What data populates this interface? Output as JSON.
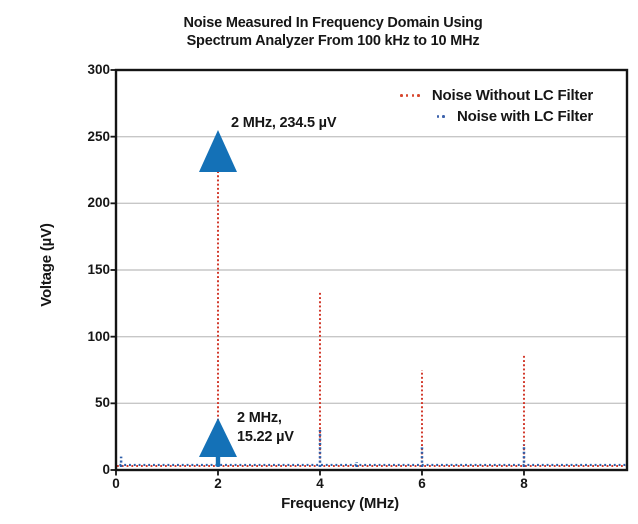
{
  "title": {
    "line1": "Noise Measured In Frequency Domain Using",
    "line2": "Spectrum Analyzer From 100 kHz to 10 MHz"
  },
  "axes": {
    "x_label": "Frequency (MHz)",
    "y_label": "Voltage (µV)",
    "x_ticks": [
      0,
      2,
      4,
      6,
      8
    ],
    "y_ticks": [
      0,
      50,
      100,
      150,
      200,
      250,
      300
    ]
  },
  "legend": [
    {
      "label": "Noise Without LC Filter",
      "color": "#d7472f",
      "dots": 4
    },
    {
      "label": "Noise with LC Filter",
      "color": "#3c62ac",
      "dots": 2
    }
  ],
  "annotations": {
    "peak_no_filter": {
      "text": "2 MHz, 234.5 µV"
    },
    "peak_with_filter": {
      "line1": "2 MHz,",
      "line2": "15.22 µV"
    }
  },
  "colors": {
    "no_filter_line": "#d23a2c",
    "with_filter_line": "#2e5fa9",
    "arrow_fill": "#1471b7",
    "grid": "#c7c7c7",
    "frame": "#141414"
  },
  "chart_data": {
    "type": "line",
    "title": "Noise Measured In Frequency Domain Using Spectrum Analyzer From 100 kHz to 10 MHz",
    "xlabel": "Frequency (MHz)",
    "ylabel": "Voltage (µV)",
    "xlim": [
      0,
      10
    ],
    "ylim": [
      0,
      300
    ],
    "grid": "horizontal",
    "legend_position": "upper right",
    "series": [
      {
        "name": "Noise Without LC Filter",
        "style": "dotted",
        "color": "#d23a2c",
        "baseline_uV": 3,
        "spikes": [
          {
            "x": 2,
            "y": 234.5
          },
          {
            "x": 4,
            "y": 133
          },
          {
            "x": 6,
            "y": 75
          },
          {
            "x": 8,
            "y": 86
          }
        ]
      },
      {
        "name": "Noise with LC Filter",
        "style": "dotted",
        "color": "#2e5fa9",
        "baseline_uV": 3.8,
        "spikes": [
          {
            "x": 0.1,
            "y": 10
          },
          {
            "x": 2,
            "y": 15.22
          },
          {
            "x": 4,
            "y": 30
          },
          {
            "x": 4.72,
            "y": 6
          },
          {
            "x": 6,
            "y": 17
          },
          {
            "x": 8,
            "y": 19
          }
        ]
      }
    ],
    "annotations": [
      {
        "text": "2 MHz, 234.5 µV",
        "x": 2,
        "y": 234.5,
        "arrow": "up-triangle"
      },
      {
        "text": "2 MHz, 15.22 µV",
        "x": 2,
        "y": 15.22,
        "arrow": "up-triangle"
      }
    ]
  }
}
